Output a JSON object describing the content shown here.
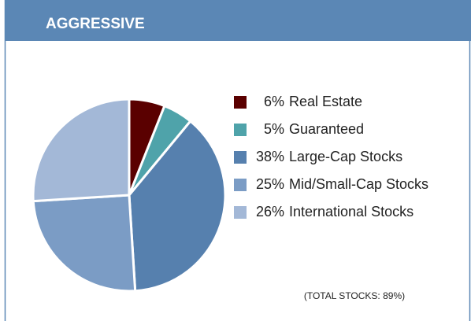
{
  "chart_data": {
    "type": "pie",
    "title": "AGGRESSIVE",
    "categories": [
      "Real Estate",
      "Guaranteed",
      "Large-Cap Stocks",
      "Mid/Small-Cap Stocks",
      "International Stocks"
    ],
    "values": [
      6,
      5,
      38,
      25,
      26
    ],
    "value_labels": [
      "6%",
      "5%",
      "38%",
      "25%",
      "26%"
    ],
    "colors": [
      "#5a0000",
      "#4fa3aa",
      "#5680ae",
      "#7b9cc5",
      "#a3b8d7"
    ],
    "annotation": "(TOTAL STOCKS: 89%)"
  }
}
